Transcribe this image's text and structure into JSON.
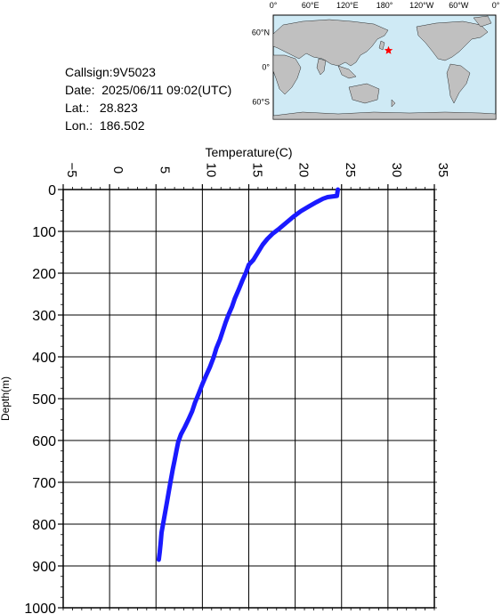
{
  "info": {
    "callsign": "Callsign:9V5023",
    "date": "Date:  2025/06/11 09:02(UTC)",
    "lat": "Lat.:   28.823",
    "lon": "Lon.:  186.502"
  },
  "map": {
    "lon_labels": [
      "0°",
      "60°E",
      "120°E",
      "180°",
      "120°W",
      "60°W",
      "0°"
    ],
    "lat_labels": [
      "60°N",
      "0°",
      "60°S"
    ],
    "marker": {
      "lat": 28.823,
      "lon": 186.502,
      "color": "#ff0000"
    },
    "land_color": "#c0c0c0",
    "ocean_color": "#cfeaf5"
  },
  "chart_data": {
    "type": "line",
    "xlabel": "Temperature(C)",
    "ylabel": "Depth(m)",
    "xlim": [
      -5,
      35
    ],
    "ylim": [
      0,
      1000
    ],
    "x_axis_position": "top",
    "y_inverted": true,
    "grid": true,
    "x_ticks": [
      -5,
      0,
      5,
      10,
      15,
      20,
      25,
      30,
      35
    ],
    "y_ticks": [
      0,
      100,
      200,
      300,
      400,
      500,
      600,
      700,
      800,
      900,
      1000
    ],
    "series": [
      {
        "color": "#1a1aff",
        "points": [
          [
            24.6,
            0
          ],
          [
            24.5,
            15
          ],
          [
            23.5,
            18
          ],
          [
            23.0,
            22
          ],
          [
            22.3,
            30
          ],
          [
            21.5,
            40
          ],
          [
            20.6,
            52
          ],
          [
            19.8,
            65
          ],
          [
            19.0,
            80
          ],
          [
            18.2,
            95
          ],
          [
            17.6,
            105
          ],
          [
            17.0,
            118
          ],
          [
            16.5,
            132
          ],
          [
            16.0,
            150
          ],
          [
            15.5,
            168
          ],
          [
            15.0,
            180
          ],
          [
            14.7,
            198
          ],
          [
            14.3,
            218
          ],
          [
            13.9,
            240
          ],
          [
            13.5,
            260
          ],
          [
            13.2,
            280
          ],
          [
            12.8,
            300
          ],
          [
            12.5,
            318
          ],
          [
            12.2,
            338
          ],
          [
            11.9,
            358
          ],
          [
            11.5,
            380
          ],
          [
            11.2,
            402
          ],
          [
            10.8,
            425
          ],
          [
            10.4,
            445
          ],
          [
            10.0,
            465
          ],
          [
            9.6,
            488
          ],
          [
            9.2,
            510
          ],
          [
            8.9,
            530
          ],
          [
            8.5,
            550
          ],
          [
            8.1,
            568
          ],
          [
            7.7,
            585
          ],
          [
            7.4,
            603
          ],
          [
            7.2,
            625
          ],
          [
            7.0,
            648
          ],
          [
            6.8,
            670
          ],
          [
            6.6,
            695
          ],
          [
            6.4,
            720
          ],
          [
            6.2,
            745
          ],
          [
            6.0,
            770
          ],
          [
            5.8,
            795
          ],
          [
            5.6,
            820
          ],
          [
            5.5,
            845
          ],
          [
            5.4,
            868
          ],
          [
            5.3,
            885
          ]
        ]
      }
    ]
  }
}
